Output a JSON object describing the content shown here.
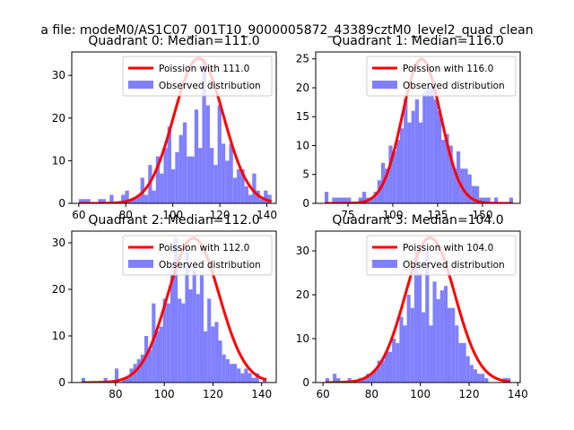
{
  "figure": {
    "suptitle": "a file: modeM0/AS1C07_001T10_9000005872_43389cztM0_level2_quad_clean"
  },
  "colors": {
    "curve": "#ff0000",
    "bars": "#8080ff"
  },
  "chart_data": [
    {
      "type": "bar",
      "title": "Quadrant 0: Median=111.0",
      "legend": [
        "Poission with 111.0",
        "Observed distribution"
      ],
      "legend_position": "upper right",
      "xlim": [
        57,
        144
      ],
      "ylim": [
        0,
        35.5
      ],
      "xticks": [
        60,
        80,
        100,
        120,
        140
      ],
      "yticks": [
        0,
        10,
        20,
        30
      ],
      "bin_range": [
        60,
        142
      ],
      "counts": [
        1,
        1,
        1,
        0,
        0,
        1,
        1,
        0,
        2,
        0,
        0,
        2,
        3,
        1,
        1,
        2,
        6,
        2,
        9,
        3,
        11,
        7,
        13,
        18,
        8,
        12,
        16,
        19,
        11,
        11,
        22,
        13,
        34,
        23,
        13,
        9,
        23,
        14,
        10,
        14,
        6,
        8,
        8,
        4,
        2,
        7,
        3,
        1,
        3,
        2
      ],
      "poisson_mean": 111.0,
      "poisson_peak": 34.0,
      "curve_x_range": [
        60,
        142
      ]
    },
    {
      "type": "bar",
      "title": "Quadrant 1: Median=116.0",
      "legend": [
        "Poission with 116.0",
        "Observed distribution"
      ],
      "legend_position": "upper right",
      "xlim": [
        57,
        171
      ],
      "ylim": [
        0,
        26.2
      ],
      "xticks": [
        75,
        100,
        125,
        150
      ],
      "yticks": [
        0,
        5,
        10,
        15,
        20,
        25
      ],
      "bin_range": [
        62,
        167
      ],
      "counts": [
        2,
        0,
        1,
        1,
        1,
        1,
        1,
        0,
        0,
        1,
        2,
        1,
        1,
        2,
        4,
        7,
        6,
        10,
        9,
        11,
        13,
        18,
        14,
        16,
        18,
        14,
        19,
        20,
        21,
        18,
        16,
        11,
        12,
        10,
        6,
        9,
        6,
        6,
        5,
        3,
        3,
        1,
        1,
        1,
        0,
        1,
        0,
        0,
        0,
        1
      ],
      "poisson_mean": 116.0,
      "poisson_peak": 25.0,
      "curve_x_range": [
        62,
        167
      ]
    },
    {
      "type": "bar",
      "title": "Quadrant 2: Median=112.0",
      "legend": [
        "Poission with 112.0",
        "Observed distribution"
      ],
      "legend_position": "upper right",
      "xlim": [
        62,
        146
      ],
      "ylim": [
        0,
        32.5
      ],
      "xticks": [
        80,
        100,
        120,
        140
      ],
      "yticks": [
        0,
        10,
        20,
        30
      ],
      "bin_range": [
        66,
        142
      ],
      "counts": [
        1,
        0,
        0,
        0,
        0,
        0,
        1,
        0,
        0,
        3,
        0,
        1,
        1,
        3,
        4,
        5,
        6,
        10,
        7,
        17,
        11,
        12,
        18,
        17,
        23,
        31,
        18,
        17,
        28,
        20,
        24,
        19,
        23,
        11,
        18,
        12,
        13,
        9,
        6,
        5,
        4,
        4,
        3,
        2,
        3,
        2,
        1,
        2,
        0,
        1
      ],
      "poisson_mean": 112.0,
      "poisson_peak": 31.0,
      "curve_x_range": [
        66,
        142
      ]
    },
    {
      "type": "bar",
      "title": "Quadrant 3: Median=104.0",
      "legend": [
        "Poission with 104.0",
        "Observed distribution"
      ],
      "legend_position": "upper right",
      "xlim": [
        57,
        141
      ],
      "ylim": [
        0,
        34.5
      ],
      "xticks": [
        60,
        80,
        100,
        120,
        140
      ],
      "yticks": [
        0,
        10,
        20,
        30
      ],
      "bin_range": [
        61,
        137
      ],
      "counts": [
        1,
        0,
        2,
        1,
        0,
        0,
        1,
        0,
        0,
        1,
        1,
        2,
        2,
        3,
        5,
        5,
        7,
        7,
        10,
        9,
        15,
        13,
        20,
        17,
        30,
        25,
        16,
        30,
        13,
        23,
        19,
        21,
        22,
        17,
        17,
        13,
        9,
        9,
        6,
        4,
        3,
        2,
        2,
        1,
        0,
        0,
        0,
        0,
        1,
        1
      ],
      "poisson_mean": 104.0,
      "poisson_peak": 33.0,
      "curve_x_range": [
        61,
        137
      ]
    }
  ]
}
